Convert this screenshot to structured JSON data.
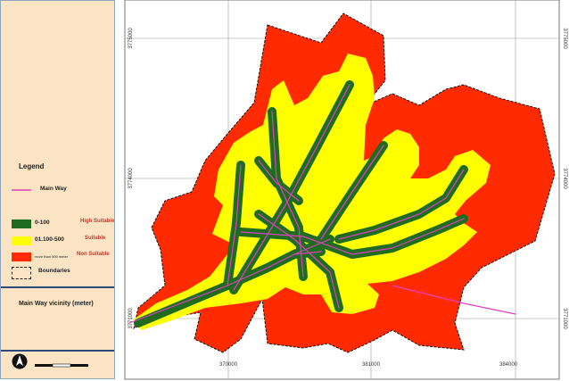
{
  "legend": {
    "title": "Legend",
    "main_way_label": "Main Way",
    "classes": [
      {
        "range": "0-100",
        "class": "High Suitable",
        "color": "#1f6b1f"
      },
      {
        "range": "01.100-500",
        "class": "Suitable",
        "color": "#ffff00"
      },
      {
        "range": "more than 500 meter",
        "class": "Non Suitable",
        "color": "#ff2a00"
      }
    ],
    "boundaries_label": "Boundaries",
    "vicinity_title": "Main Way vicinity (meter)"
  },
  "map": {
    "x_ticks": [
      "370000",
      "381000",
      "384000"
    ],
    "y_ticks": [
      "3775000",
      "3774000",
      "3771000"
    ],
    "colors": {
      "road": "#e040c0",
      "high": "#1f6b1f",
      "mid": "#ffff00",
      "low": "#ff2a00",
      "grid": "#888888"
    },
    "icons": [
      "north-arrow-icon",
      "scale-bar"
    ]
  }
}
